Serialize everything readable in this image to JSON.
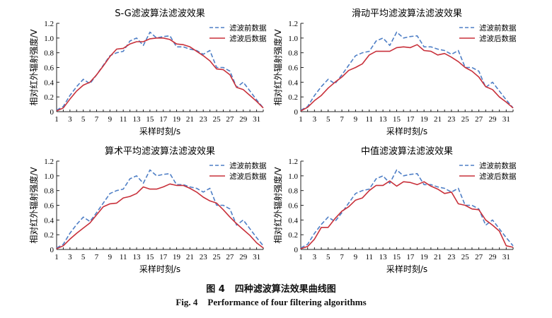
{
  "figure": {
    "caption_cn_label": "图 4",
    "caption_cn_text": "四种滤波算法效果曲线图",
    "caption_en_label": "Fig. 4",
    "caption_en_text": "Performance of four filtering algorithms"
  },
  "colors": {
    "before": "#4f7fc6",
    "after": "#c8303a"
  },
  "chart_data": [
    {
      "type": "line",
      "title": "S-G滤波算法滤波效果",
      "xlabel": "采样时刻/s",
      "ylabel": "相对红外辐射强度/V",
      "xlim": [
        1,
        32
      ],
      "ylim": [
        0,
        1.2
      ],
      "xticks": [
        "1",
        "3",
        "5",
        "7",
        "9",
        "11",
        "13",
        "15",
        "17",
        "19",
        "21",
        "23",
        "25",
        "27",
        "29",
        "31"
      ],
      "yticks": [
        "0",
        "0.2",
        "0.4",
        "0.6",
        "0.8",
        "1.0",
        "1.2"
      ],
      "legend": "top-right",
      "x": [
        1,
        2,
        3,
        4,
        5,
        6,
        7,
        8,
        9,
        10,
        11,
        12,
        13,
        14,
        15,
        16,
        17,
        18,
        19,
        20,
        21,
        22,
        23,
        24,
        25,
        26,
        27,
        28,
        29,
        30,
        31,
        32
      ],
      "series": [
        {
          "name": "滤波前数据",
          "style": "dashed",
          "values": [
            0.02,
            0.07,
            0.22,
            0.34,
            0.44,
            0.38,
            0.5,
            0.63,
            0.76,
            0.8,
            0.82,
            0.96,
            1.0,
            0.9,
            1.08,
            1.0,
            1.02,
            1.03,
            0.88,
            0.88,
            0.85,
            0.83,
            0.78,
            0.83,
            0.6,
            0.6,
            0.55,
            0.33,
            0.4,
            0.28,
            0.16,
            0.05
          ]
        },
        {
          "name": "滤波后数据",
          "style": "solid",
          "values": [
            0.01,
            0.05,
            0.17,
            0.28,
            0.36,
            0.4,
            0.5,
            0.62,
            0.75,
            0.85,
            0.86,
            0.92,
            0.95,
            0.95,
            0.99,
            1.0,
            1.0,
            0.98,
            0.92,
            0.91,
            0.88,
            0.82,
            0.76,
            0.69,
            0.58,
            0.57,
            0.5,
            0.33,
            0.3,
            0.22,
            0.14,
            0.05
          ]
        }
      ]
    },
    {
      "type": "line",
      "title": "滑动平均滤波算法滤波效果",
      "xlabel": "采样时刻/s",
      "ylabel": "相对红外辐射强度/V",
      "xlim": [
        1,
        32
      ],
      "ylim": [
        0,
        1.2
      ],
      "xticks": [
        "1",
        "3",
        "5",
        "7",
        "9",
        "11",
        "13",
        "15",
        "17",
        "19",
        "21",
        "23",
        "25",
        "27",
        "29",
        "31"
      ],
      "yticks": [
        "0",
        "0.2",
        "0.4",
        "0.6",
        "0.8",
        "1.0",
        "1.2"
      ],
      "legend": "top-right",
      "x": [
        1,
        2,
        3,
        4,
        5,
        6,
        7,
        8,
        9,
        10,
        11,
        12,
        13,
        14,
        15,
        16,
        17,
        18,
        19,
        20,
        21,
        22,
        23,
        24,
        25,
        26,
        27,
        28,
        29,
        30,
        31,
        32
      ],
      "series": [
        {
          "name": "滤波前数据",
          "style": "dashed",
          "values": [
            0.02,
            0.07,
            0.22,
            0.34,
            0.44,
            0.38,
            0.5,
            0.63,
            0.76,
            0.8,
            0.82,
            0.96,
            1.0,
            0.9,
            1.08,
            1.0,
            1.02,
            1.03,
            0.88,
            0.88,
            0.85,
            0.83,
            0.78,
            0.83,
            0.6,
            0.6,
            0.55,
            0.33,
            0.4,
            0.28,
            0.16,
            0.05
          ]
        },
        {
          "name": "滤波后数据",
          "style": "solid",
          "values": [
            0.01,
            0.06,
            0.15,
            0.22,
            0.32,
            0.4,
            0.47,
            0.56,
            0.6,
            0.65,
            0.77,
            0.82,
            0.82,
            0.82,
            0.87,
            0.88,
            0.87,
            0.91,
            0.83,
            0.82,
            0.77,
            0.79,
            0.74,
            0.68,
            0.6,
            0.55,
            0.47,
            0.34,
            0.3,
            0.2,
            0.13,
            0.05
          ]
        }
      ]
    },
    {
      "type": "line",
      "title": "算术平均滤波算法滤波效果",
      "xlabel": "采样时刻/s",
      "ylabel": "相对红外辐射强度/V",
      "xlim": [
        1,
        32
      ],
      "ylim": [
        0,
        1.2
      ],
      "xticks": [
        "1",
        "3",
        "5",
        "7",
        "9",
        "11",
        "13",
        "15",
        "17",
        "19",
        "21",
        "23",
        "25",
        "27",
        "29",
        "31"
      ],
      "yticks": [
        "0",
        "0.2",
        "0.4",
        "0.6",
        "0.8",
        "1.0",
        "1.2"
      ],
      "legend": "top-right",
      "x": [
        1,
        2,
        3,
        4,
        5,
        6,
        7,
        8,
        9,
        10,
        11,
        12,
        13,
        14,
        15,
        16,
        17,
        18,
        19,
        20,
        21,
        22,
        23,
        24,
        25,
        26,
        27,
        28,
        29,
        30,
        31,
        32
      ],
      "series": [
        {
          "name": "滤波前数据",
          "style": "dashed",
          "values": [
            0.02,
            0.07,
            0.22,
            0.34,
            0.44,
            0.38,
            0.5,
            0.63,
            0.76,
            0.8,
            0.82,
            0.96,
            1.0,
            0.9,
            1.08,
            1.0,
            1.02,
            1.03,
            0.88,
            0.88,
            0.85,
            0.83,
            0.78,
            0.83,
            0.6,
            0.6,
            0.55,
            0.33,
            0.4,
            0.28,
            0.16,
            0.05
          ]
        },
        {
          "name": "滤波后数据",
          "style": "solid",
          "values": [
            0.01,
            0.05,
            0.14,
            0.22,
            0.29,
            0.36,
            0.47,
            0.58,
            0.62,
            0.63,
            0.7,
            0.72,
            0.76,
            0.85,
            0.82,
            0.82,
            0.85,
            0.89,
            0.87,
            0.87,
            0.83,
            0.78,
            0.71,
            0.66,
            0.63,
            0.54,
            0.44,
            0.35,
            0.27,
            0.19,
            0.09,
            0.02
          ]
        }
      ]
    },
    {
      "type": "line",
      "title": "中值滤波算法滤波效果",
      "xlabel": "采样时刻/s",
      "ylabel": "相对红外辐射强度/V",
      "xlim": [
        1,
        32
      ],
      "ylim": [
        0,
        1.2
      ],
      "xticks": [
        "1",
        "3",
        "5",
        "7",
        "9",
        "11",
        "13",
        "15",
        "17",
        "19",
        "21",
        "23",
        "25",
        "27",
        "29",
        "31"
      ],
      "yticks": [
        "0",
        "0.2",
        "0.4",
        "0.6",
        "0.8",
        "1.0",
        "1.2"
      ],
      "legend": "top-right",
      "x": [
        1,
        2,
        3,
        4,
        5,
        6,
        7,
        8,
        9,
        10,
        11,
        12,
        13,
        14,
        15,
        16,
        17,
        18,
        19,
        20,
        21,
        22,
        23,
        24,
        25,
        26,
        27,
        28,
        29,
        30,
        31,
        32
      ],
      "series": [
        {
          "name": "滤波前数据",
          "style": "dashed",
          "values": [
            0.02,
            0.07,
            0.22,
            0.34,
            0.44,
            0.38,
            0.5,
            0.63,
            0.76,
            0.8,
            0.82,
            0.96,
            1.0,
            0.9,
            1.08,
            1.0,
            1.02,
            1.03,
            0.88,
            0.88,
            0.85,
            0.83,
            0.78,
            0.83,
            0.6,
            0.6,
            0.55,
            0.33,
            0.4,
            0.28,
            0.16,
            0.05
          ]
        },
        {
          "name": "滤波后数据",
          "style": "solid",
          "values": [
            0.01,
            0.04,
            0.14,
            0.3,
            0.3,
            0.42,
            0.52,
            0.58,
            0.67,
            0.7,
            0.8,
            0.87,
            0.87,
            0.93,
            0.86,
            0.92,
            0.91,
            0.88,
            0.92,
            0.86,
            0.82,
            0.76,
            0.78,
            0.62,
            0.6,
            0.55,
            0.54,
            0.4,
            0.33,
            0.25,
            0.05,
            0.03
          ]
        }
      ]
    }
  ]
}
